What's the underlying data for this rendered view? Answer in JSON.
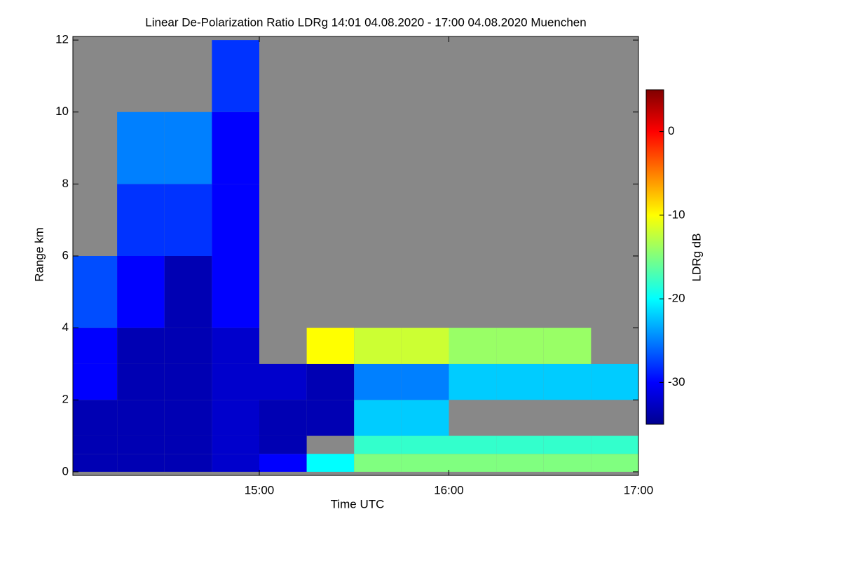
{
  "chart_data": {
    "type": "heatmap",
    "title": "Linear De-Polarization Ratio LDRg   14:01 04.08.2020 - 17:00 04.08.2020 Muenchen",
    "x_label": "Time UTC",
    "y_label": "Range km",
    "colorbar_label": "LDRg dB",
    "xlim": [
      14.0167,
      17
    ],
    "xticks": [
      {
        "value": 15,
        "label": "15:00"
      },
      {
        "value": 16,
        "label": "16:00"
      },
      {
        "value": 17,
        "label": "17:00"
      }
    ],
    "ylim": [
      -0.1,
      12.1
    ],
    "yticks": [
      0,
      2,
      4,
      6,
      8,
      10,
      12
    ],
    "clim": [
      -35,
      5
    ],
    "cticks": [
      0,
      -10,
      -20,
      -30
    ],
    "colormap": "jet",
    "x_edges": [
      14.0167,
      14.25,
      14.5,
      14.75,
      15,
      15.25,
      15.5,
      15.75,
      16,
      16.25,
      16.5,
      16.75,
      17
    ],
    "y_edges": [
      0,
      0.5,
      1,
      2,
      3,
      4,
      6,
      8,
      10,
      12
    ],
    "z": [
      [
        -33,
        -33,
        -33,
        -32,
        -30,
        -20,
        -15,
        -15,
        -15,
        -15,
        -15,
        -15
      ],
      [
        -33,
        -33,
        -33,
        -32,
        -33,
        null,
        -18,
        -18,
        -18,
        -18,
        -18,
        -18
      ],
      [
        -33,
        -33,
        -33,
        -32,
        -33,
        -33,
        -22,
        -22,
        null,
        null,
        null,
        null
      ],
      [
        -30,
        -33,
        -33,
        -32,
        -32,
        -33,
        -25,
        -25,
        -22,
        -22,
        -22,
        -22
      ],
      [
        -30,
        -33,
        -33,
        -32,
        null,
        -10,
        -12,
        -12,
        -14,
        -14,
        -14,
        null
      ],
      [
        -27,
        -30,
        -33,
        -30,
        null,
        null,
        null,
        null,
        null,
        null,
        null,
        null
      ],
      [
        null,
        -28,
        -28,
        -30,
        null,
        null,
        null,
        null,
        null,
        null,
        null,
        null
      ],
      [
        null,
        -25,
        -25,
        -30,
        null,
        null,
        null,
        null,
        null,
        null,
        null,
        null
      ],
      [
        null,
        null,
        null,
        -28,
        null,
        null,
        null,
        null,
        null,
        null,
        null,
        null
      ]
    ]
  }
}
